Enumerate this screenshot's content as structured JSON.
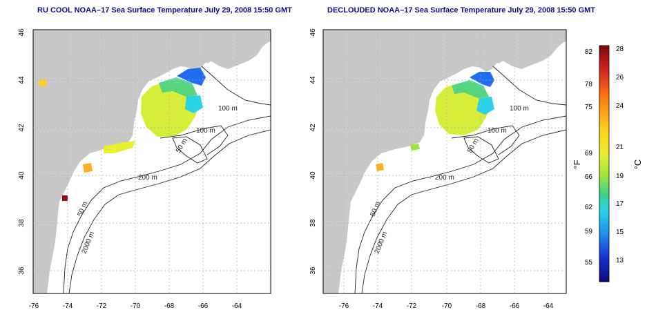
{
  "panels": [
    {
      "title": "RU COOL NOAA–17 Sea Surface Temperature July 29, 2008 15:50 GMT",
      "x_ticks": [
        "-76",
        "-74",
        "-72",
        "-70",
        "-68",
        "-66",
        "-64"
      ],
      "y_ticks": [
        "46",
        "44",
        "42",
        "40",
        "38",
        "36"
      ],
      "contours": [
        "100 m",
        "100 m",
        "50 m",
        "200 m",
        "50 m",
        "2000 m"
      ]
    },
    {
      "title": "DECLOUDED NOAA–17 Sea Surface Temperature July 29, 2008 15:50 GMT",
      "x_ticks": [
        "-76",
        "-74",
        "-72",
        "-70",
        "-68",
        "-66",
        "-64"
      ],
      "y_ticks": [
        "46",
        "44",
        "42",
        "40",
        "38",
        "36"
      ],
      "contours": [
        "100 m",
        "100 m",
        "50 m",
        "200 m",
        "50 m",
        "2000 m"
      ]
    }
  ],
  "colorbar": {
    "fahrenheit_label": "°F",
    "celsius_label": "°C",
    "fahrenheit_ticks": [
      "82",
      "78",
      "75",
      "69",
      "66",
      "62",
      "59",
      "55"
    ],
    "celsius_ticks": [
      "28",
      "26",
      "24",
      "21",
      "19",
      "17",
      "15",
      "13"
    ],
    "colors": [
      "#7a0a0a",
      "#d42020",
      "#ff7a10",
      "#ffd21e",
      "#e8f030",
      "#9ee63c",
      "#3ed08a",
      "#2ad2e8",
      "#1e8cf0",
      "#1830d0",
      "#0a0a7a"
    ]
  },
  "colors": {
    "land": "#c8c8c8",
    "ocean": "#ffffff",
    "title": "#0b0b8c"
  }
}
